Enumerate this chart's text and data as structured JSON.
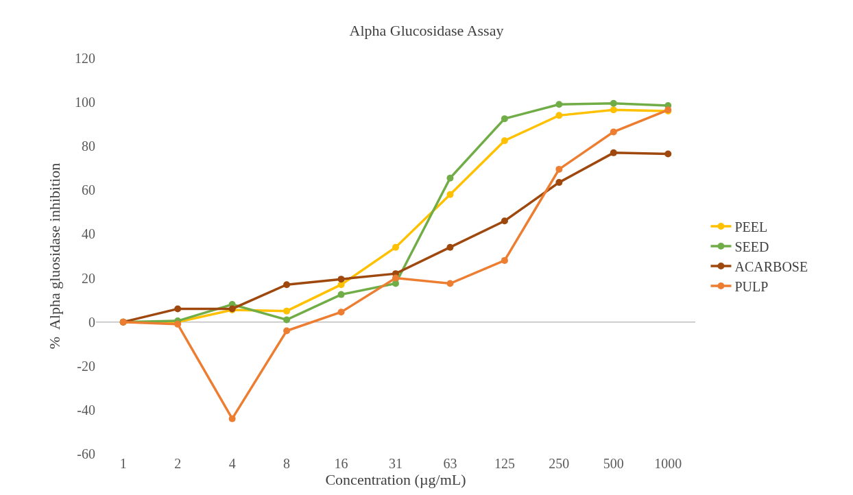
{
  "chart_data": {
    "type": "line",
    "title": "Alpha Glucosidase Assay",
    "xlabel": "Concentration (µg/mL)",
    "ylabel": "%  Alpha gluosidase inhibition",
    "categories": [
      "1",
      "2",
      "4",
      "8",
      "16",
      "31",
      "63",
      "125",
      "250",
      "500",
      "1000"
    ],
    "series": [
      {
        "name": "PEEL",
        "color": "#ffc000",
        "values": [
          0,
          0,
          5.5,
          5,
          17,
          34,
          58,
          82.5,
          94,
          96.5,
          96
        ]
      },
      {
        "name": "SEED",
        "color": "#70ad47",
        "values": [
          0,
          0.5,
          8,
          1,
          12.5,
          17.5,
          65.5,
          92.5,
          99,
          99.5,
          98.5
        ]
      },
      {
        "name": "ACARBOSE",
        "color": "#9e480e",
        "values": [
          0,
          6,
          6,
          17,
          19.5,
          22,
          34,
          46,
          63.5,
          77,
          76.5
        ]
      },
      {
        "name": "PULP",
        "color": "#ed7d31",
        "values": [
          0,
          -1,
          -44,
          -4,
          4.5,
          20,
          17.5,
          28,
          69.5,
          86.5,
          96.5
        ]
      }
    ],
    "ylim": [
      -60,
      120
    ],
    "yticks": [
      -60,
      -40,
      -20,
      0,
      20,
      40,
      60,
      80,
      100,
      120
    ],
    "ref_lines": [
      {
        "axis": "y",
        "value": 0,
        "color": "#bfbfbf"
      }
    ],
    "grid": false,
    "legend": "right",
    "marker": "circle",
    "line_style": "solid"
  }
}
